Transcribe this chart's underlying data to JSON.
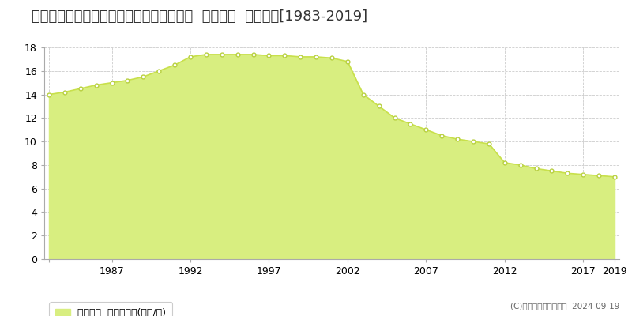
{
  "title": "香川県坂出市入船町１丁目３２２番７６外  公示地価  地価推移[1983-2019]",
  "years": [
    1983,
    1984,
    1985,
    1986,
    1987,
    1988,
    1989,
    1990,
    1991,
    1992,
    1993,
    1994,
    1995,
    1996,
    1997,
    1998,
    1999,
    2000,
    2001,
    2002,
    2003,
    2004,
    2005,
    2006,
    2007,
    2008,
    2009,
    2010,
    2011,
    2012,
    2013,
    2014,
    2015,
    2016,
    2017,
    2018,
    2019
  ],
  "values": [
    14.0,
    14.2,
    14.5,
    14.8,
    15.0,
    15.2,
    15.5,
    16.0,
    16.5,
    17.2,
    17.4,
    17.4,
    17.4,
    17.4,
    17.3,
    17.3,
    17.2,
    17.2,
    17.1,
    16.8,
    14.0,
    13.0,
    12.0,
    11.5,
    11.0,
    10.5,
    10.2,
    10.0,
    9.8,
    8.2,
    8.0,
    7.7,
    7.5,
    7.3,
    7.2,
    7.1,
    7.0
  ],
  "line_color": "#c8e04b",
  "fill_color": "#d8ee80",
  "marker_color": "#ffffff",
  "marker_edge_color": "#b8d040",
  "background_color": "#ffffff",
  "grid_color": "#cccccc",
  "ylim": [
    0,
    18
  ],
  "yticks": [
    0,
    2,
    4,
    6,
    8,
    10,
    12,
    14,
    16,
    18
  ],
  "xticks": [
    1983,
    1987,
    1992,
    1997,
    2002,
    2007,
    2012,
    2017,
    2019
  ],
  "xtick_labels": [
    "",
    "1987",
    "1992",
    "1997",
    "2002",
    "2007",
    "2012",
    "2017",
    "2019"
  ],
  "legend_label": "公示地価  平均坪単価(万円/坪)",
  "copyright_text": "(C)土地価格ドットコム  2024-09-19",
  "title_fontsize": 13,
  "tick_fontsize": 9,
  "legend_fontsize": 9
}
